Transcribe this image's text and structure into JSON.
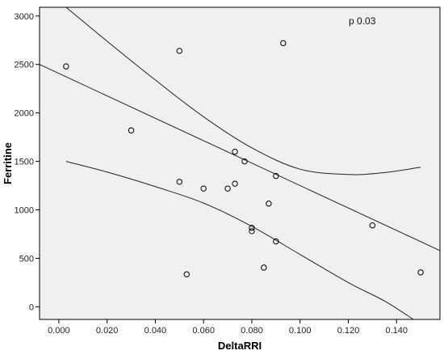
{
  "chart_data": {
    "type": "scatter",
    "title": "",
    "xlabel": "DeltaRRI",
    "ylabel": "Ferritine",
    "xlim": [
      -0.008,
      0.158
    ],
    "ylim": [
      -130,
      3090
    ],
    "x_ticks": [
      0.0,
      0.02,
      0.04,
      0.06,
      0.08,
      0.1,
      0.12,
      0.14
    ],
    "x_tick_labels": [
      "0.000",
      "0.020",
      "0.040",
      "0.060",
      "0.080",
      "0.100",
      "0.120",
      "0.140"
    ],
    "y_ticks": [
      0,
      500,
      1000,
      1500,
      2000,
      2500,
      3000
    ],
    "y_tick_labels": [
      "0",
      "500",
      "1000",
      "1500",
      "2000",
      "2500",
      "3000"
    ],
    "grid": false,
    "annotation": "p 0.03",
    "points": [
      {
        "x": 0.003,
        "y": 2480
      },
      {
        "x": 0.03,
        "y": 1820
      },
      {
        "x": 0.05,
        "y": 2640
      },
      {
        "x": 0.05,
        "y": 1290
      },
      {
        "x": 0.053,
        "y": 335
      },
      {
        "x": 0.06,
        "y": 1220
      },
      {
        "x": 0.07,
        "y": 1220
      },
      {
        "x": 0.073,
        "y": 1270
      },
      {
        "x": 0.073,
        "y": 1600
      },
      {
        "x": 0.077,
        "y": 1500
      },
      {
        "x": 0.08,
        "y": 815
      },
      {
        "x": 0.08,
        "y": 780
      },
      {
        "x": 0.085,
        "y": 405
      },
      {
        "x": 0.087,
        "y": 1065
      },
      {
        "x": 0.09,
        "y": 1350
      },
      {
        "x": 0.09,
        "y": 675
      },
      {
        "x": 0.093,
        "y": 2720
      },
      {
        "x": 0.13,
        "y": 840
      },
      {
        "x": 0.15,
        "y": 355
      }
    ],
    "fit_line": [
      {
        "x": -0.008,
        "y": 2500
      },
      {
        "x": 0.158,
        "y": 580
      }
    ],
    "upper_band": [
      {
        "x": 0.003,
        "y": 3090
      },
      {
        "x": 0.02,
        "y": 2740
      },
      {
        "x": 0.04,
        "y": 2340
      },
      {
        "x": 0.06,
        "y": 1960
      },
      {
        "x": 0.08,
        "y": 1640
      },
      {
        "x": 0.1,
        "y": 1420
      },
      {
        "x": 0.12,
        "y": 1365
      },
      {
        "x": 0.135,
        "y": 1385
      },
      {
        "x": 0.15,
        "y": 1440
      }
    ],
    "lower_band": [
      {
        "x": 0.003,
        "y": 1500
      },
      {
        "x": 0.02,
        "y": 1390
      },
      {
        "x": 0.04,
        "y": 1240
      },
      {
        "x": 0.06,
        "y": 1070
      },
      {
        "x": 0.08,
        "y": 830
      },
      {
        "x": 0.1,
        "y": 540
      },
      {
        "x": 0.12,
        "y": 250
      },
      {
        "x": 0.135,
        "y": 60
      },
      {
        "x": 0.147,
        "y": -130
      }
    ]
  }
}
